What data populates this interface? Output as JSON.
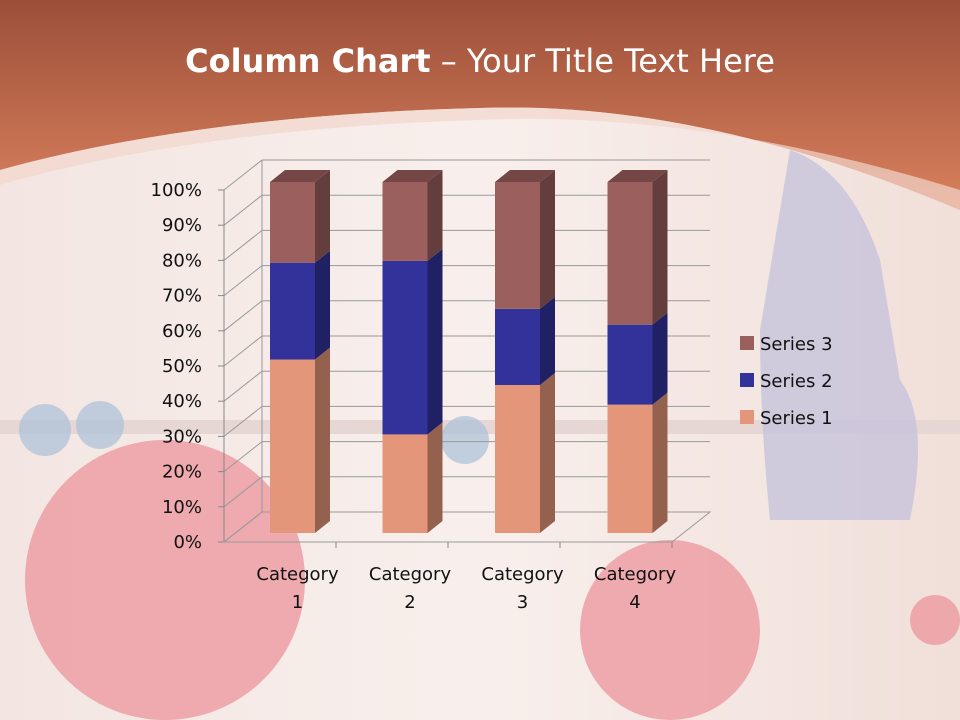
{
  "title": {
    "bold": "Column Chart",
    "rest": " – Your Title Text Here"
  },
  "colors": {
    "header": "#c8694a",
    "series1": "#e4967a",
    "series2": "#32329a",
    "series3": "#9b5f5e"
  },
  "chart_data": {
    "type": "bar",
    "subtype": "3d-stacked-100-percent",
    "categories": [
      "Category 1",
      "Category 2",
      "Category 3",
      "Category 4"
    ],
    "series": [
      {
        "name": "Series 1",
        "values": [
          4.3,
          2.5,
          3.5,
          4.5
        ]
      },
      {
        "name": "Series 2",
        "values": [
          2.4,
          4.4,
          1.8,
          2.8
        ]
      },
      {
        "name": "Series 3",
        "values": [
          2,
          2,
          3,
          5
        ]
      }
    ],
    "yticks": [
      "0%",
      "10%",
      "20%",
      "30%",
      "40%",
      "50%",
      "60%",
      "70%",
      "80%",
      "90%",
      "100%"
    ],
    "ylim": [
      0,
      100
    ],
    "grid": true,
    "legend": "right"
  }
}
